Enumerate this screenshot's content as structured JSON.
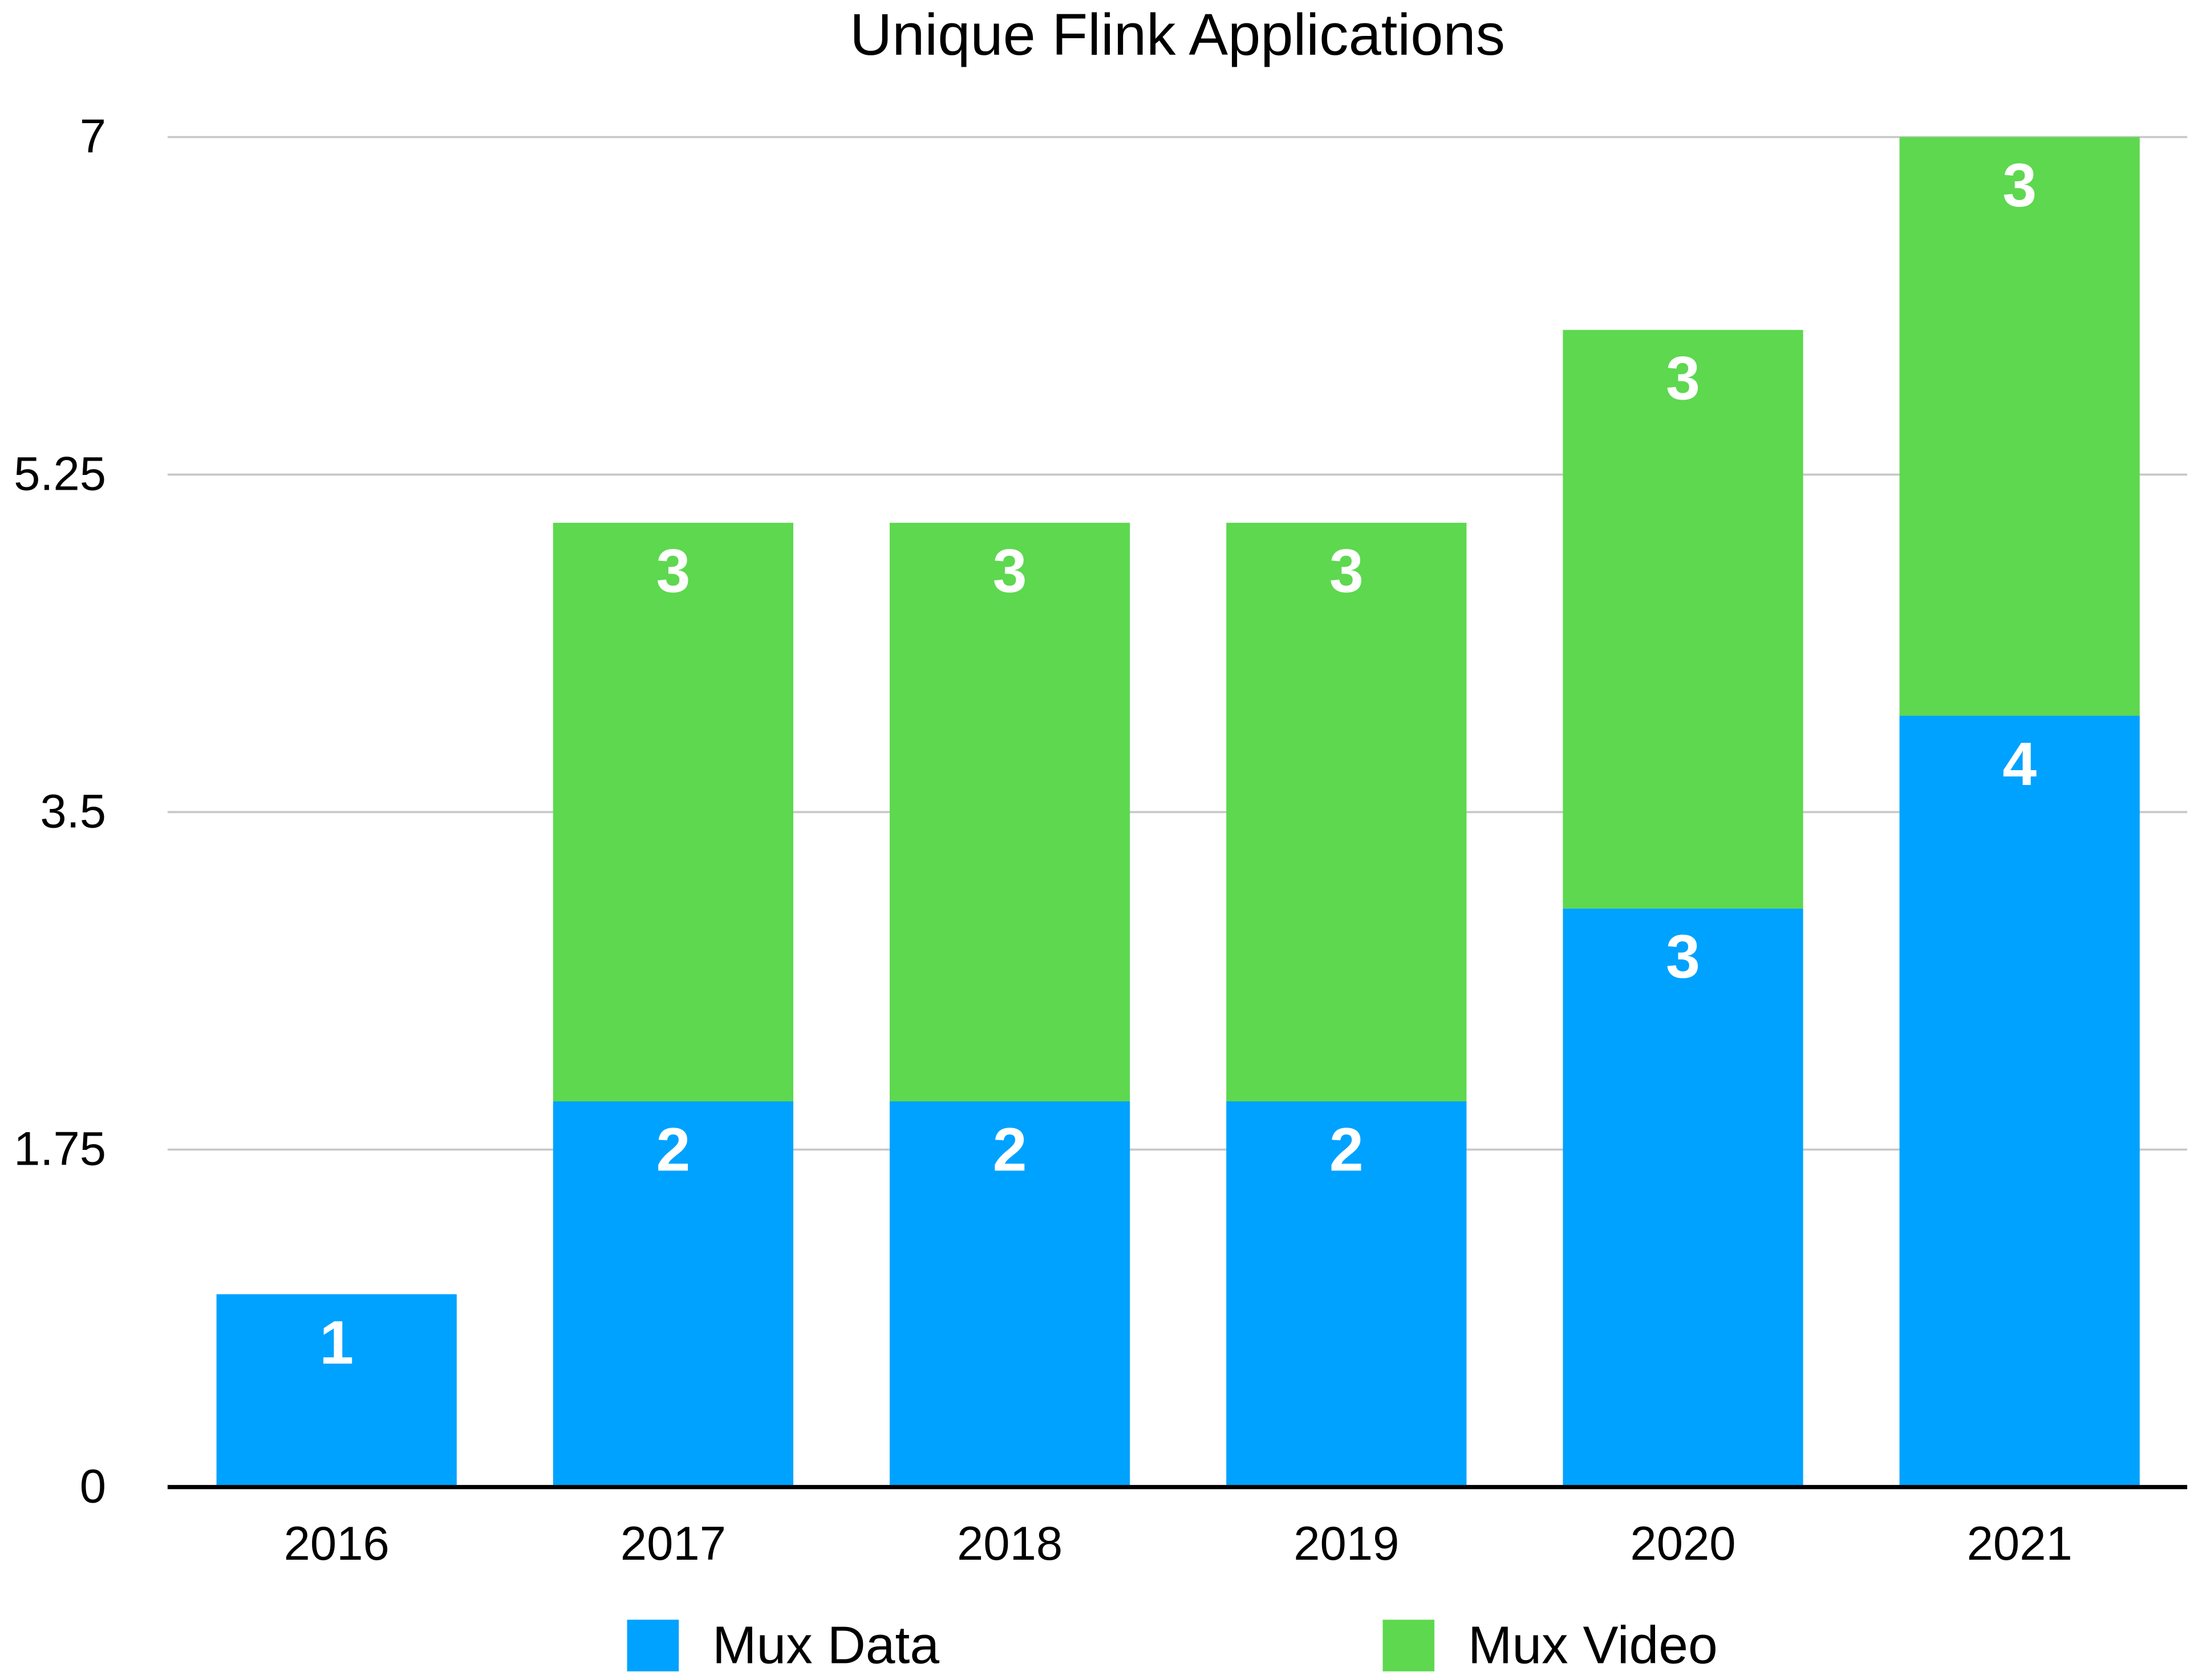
{
  "chart_data": {
    "type": "stacked_bar",
    "title": "Unique Flink Applications",
    "categories": [
      "2016",
      "2017",
      "2018",
      "2019",
      "2020",
      "2021"
    ],
    "series": [
      {
        "name": "Mux Data",
        "color": "#00a2ff",
        "values": [
          1,
          2,
          2,
          2,
          3,
          4
        ]
      },
      {
        "name": "Mux Video",
        "color": "#5dd84f",
        "values": [
          null,
          3,
          3,
          3,
          3,
          3
        ]
      }
    ],
    "ylim": [
      0,
      7
    ],
    "yticks": [
      0,
      1.75,
      3.5,
      5.25,
      7
    ],
    "grid": true
  }
}
